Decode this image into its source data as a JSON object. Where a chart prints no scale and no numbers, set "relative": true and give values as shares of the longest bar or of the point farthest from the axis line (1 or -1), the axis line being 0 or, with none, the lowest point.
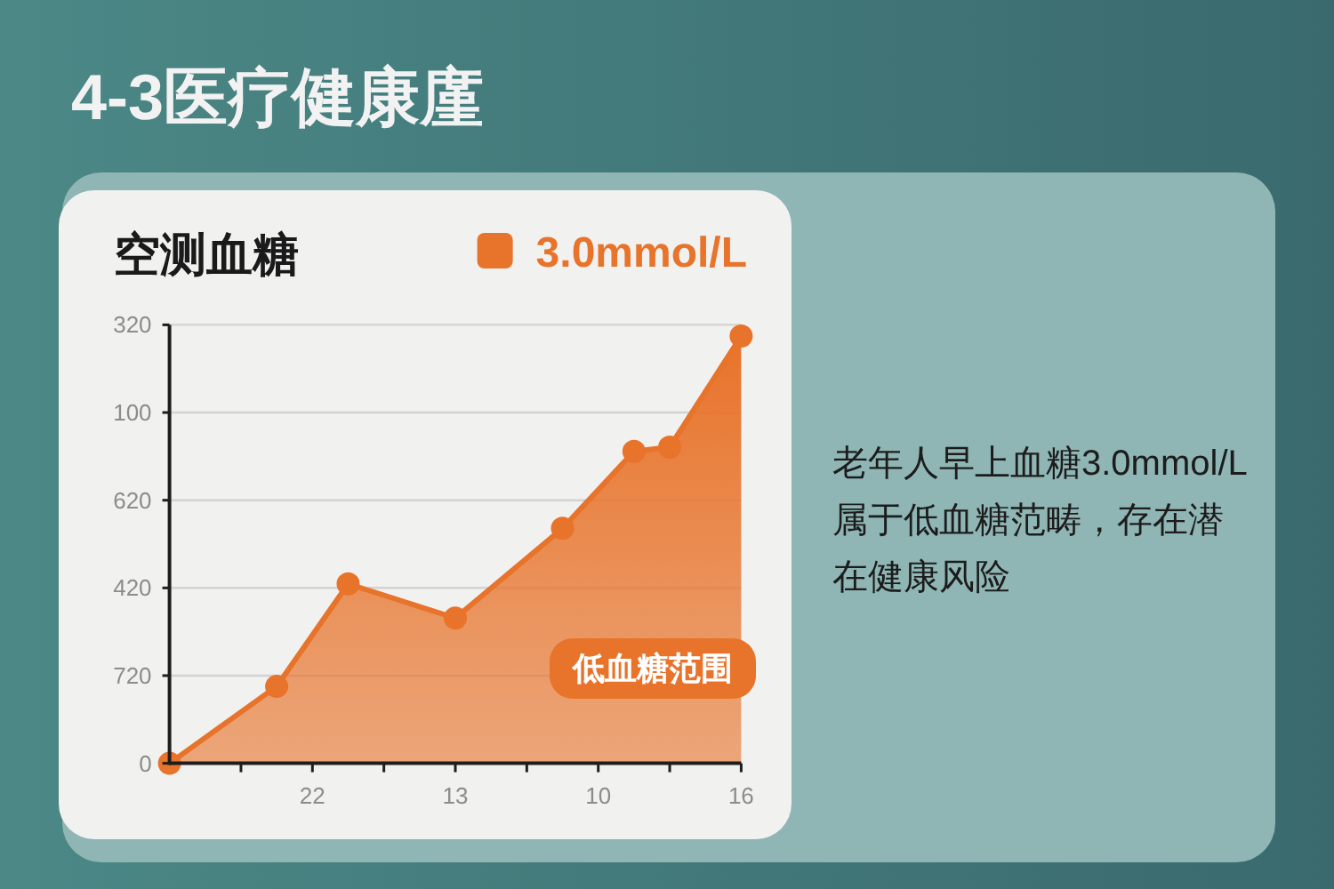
{
  "chart_data": {
    "type": "area",
    "title": "4-3医疗健康廑",
    "subtitle": "空测血糖",
    "relative": true,
    "categories": [
      null,
      null,
      null,
      null,
      "22",
      null,
      null,
      null,
      "13",
      null,
      null,
      null,
      "10",
      null,
      null,
      null,
      "16"
    ],
    "series": [
      {
        "name": "3.0mmol/L",
        "color": "#e8732a",
        "values": [
          0,
          null,
          null,
          0.18,
          null,
          0.42,
          null,
          null,
          0.34,
          null,
          null,
          0.55,
          null,
          0.73,
          0.74,
          null,
          1
        ]
      }
    ],
    "grid": "y",
    "marker": "circle",
    "legend": "top right",
    "annotations": [
      "320",
      "100",
      "620",
      "420",
      "720",
      "0",
      "低血糖范围",
      "老年人早上血糖3.0mmol/L属于低血糖范畴，存在潜在健康风险"
    ]
  }
}
